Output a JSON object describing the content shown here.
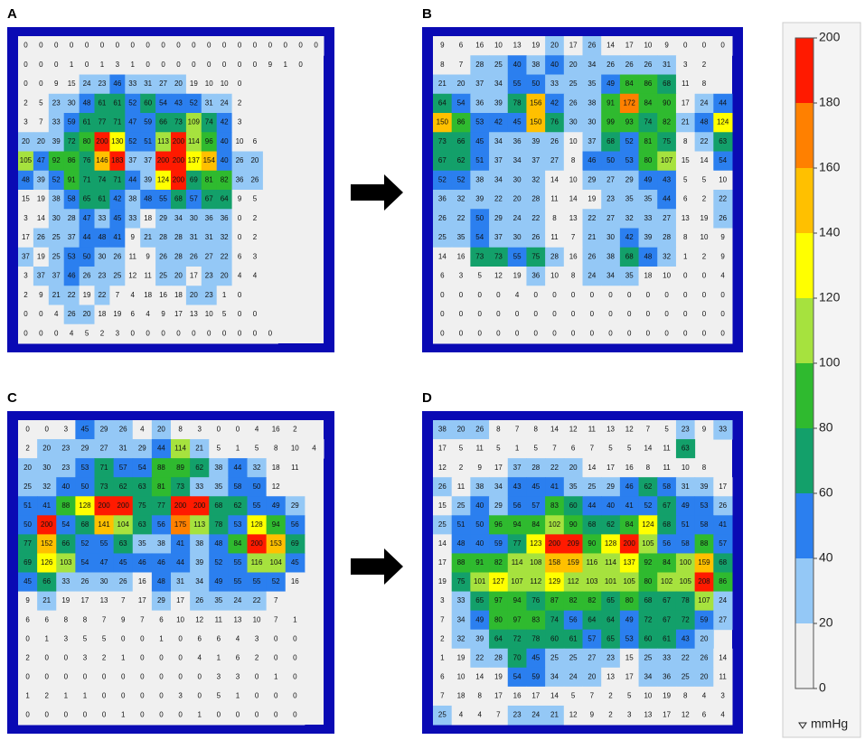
{
  "chart_data": [
    {
      "type": "heatmap",
      "title": "A",
      "values": [
        [
          0,
          0,
          0,
          0,
          0,
          0,
          0,
          0,
          0,
          0,
          0,
          0,
          0,
          0,
          0,
          0,
          0,
          0,
          0,
          0
        ],
        [
          0,
          0,
          0,
          1,
          0,
          1,
          3,
          1,
          0,
          0,
          0,
          0,
          0,
          0,
          0,
          0,
          9,
          1,
          0
        ],
        [
          0,
          0,
          9,
          15,
          24,
          23,
          46,
          33,
          31,
          27,
          20,
          19,
          10,
          10,
          0
        ],
        [
          2,
          5,
          23,
          30,
          48,
          61,
          61,
          52,
          60,
          54,
          43,
          52,
          31,
          24,
          2
        ],
        [
          3,
          7,
          33,
          59,
          61,
          77,
          71,
          47,
          59,
          66,
          73,
          109,
          74,
          42,
          3
        ],
        [
          20,
          20,
          39,
          72,
          80,
          200,
          130,
          52,
          51,
          113,
          200,
          114,
          96,
          40,
          10,
          6
        ],
        [
          105,
          47,
          92,
          86,
          76,
          146,
          183,
          37,
          37,
          200,
          200,
          137,
          154,
          40,
          26,
          20
        ],
        [
          48,
          39,
          52,
          91,
          71,
          74,
          71,
          44,
          39,
          124,
          200,
          69,
          81,
          82,
          36,
          26
        ],
        [
          15,
          19,
          38,
          58,
          65,
          61,
          42,
          38,
          48,
          55,
          68,
          57,
          67,
          64,
          9,
          5
        ],
        [
          3,
          14,
          30,
          28,
          47,
          33,
          45,
          33,
          18,
          29,
          34,
          30,
          36,
          36,
          0,
          2
        ],
        [
          17,
          26,
          25,
          37,
          44,
          48,
          41,
          9,
          21,
          28,
          28,
          31,
          31,
          32,
          0,
          2
        ],
        [
          37,
          19,
          25,
          53,
          50,
          30,
          26,
          11,
          9,
          26,
          28,
          26,
          27,
          22,
          6,
          3
        ],
        [
          3,
          37,
          37,
          46,
          26,
          23,
          25,
          12,
          11,
          25,
          20,
          17,
          23,
          20,
          4,
          4
        ],
        [
          2,
          9,
          21,
          22,
          19,
          22,
          7,
          4,
          18,
          16,
          18,
          20,
          23,
          1,
          0
        ],
        [
          0,
          0,
          4,
          26,
          20,
          18,
          19,
          6,
          4,
          9,
          17,
          13,
          10,
          5,
          0,
          0
        ],
        [
          0,
          0,
          0,
          4,
          5,
          2,
          3,
          0,
          0,
          0,
          0,
          0,
          0,
          0,
          0,
          0,
          0
        ]
      ]
    },
    {
      "type": "heatmap",
      "title": "B",
      "values": [
        [
          9,
          6,
          16,
          10,
          13,
          19,
          20,
          17,
          26,
          14,
          17,
          10,
          9,
          0,
          0,
          0
        ],
        [
          8,
          7,
          28,
          25,
          40,
          38,
          40,
          20,
          34,
          26,
          26,
          26,
          31,
          3,
          2
        ],
        [
          21,
          20,
          37,
          34,
          55,
          50,
          33,
          25,
          35,
          49,
          84,
          86,
          68,
          11,
          8
        ],
        [
          64,
          54,
          36,
          39,
          78,
          156,
          42,
          26,
          38,
          91,
          172,
          84,
          90,
          17,
          24,
          44
        ],
        [
          150,
          86,
          53,
          42,
          45,
          150,
          76,
          30,
          30,
          99,
          93,
          74,
          82,
          21,
          48,
          124
        ],
        [
          73,
          66,
          45,
          34,
          36,
          39,
          26,
          10,
          37,
          68,
          52,
          81,
          75,
          8,
          22,
          63
        ],
        [
          67,
          62,
          51,
          37,
          34,
          37,
          27,
          8,
          46,
          50,
          53,
          80,
          107,
          15,
          14,
          54
        ],
        [
          52,
          52,
          38,
          34,
          30,
          32,
          14,
          10,
          29,
          27,
          29,
          49,
          43,
          5,
          5,
          10
        ],
        [
          36,
          32,
          39,
          22,
          20,
          28,
          11,
          14,
          19,
          23,
          35,
          35,
          44,
          6,
          2,
          22
        ],
        [
          26,
          22,
          50,
          29,
          24,
          22,
          8,
          13,
          22,
          27,
          32,
          33,
          27,
          13,
          19,
          26
        ],
        [
          25,
          35,
          54,
          37,
          30,
          26,
          11,
          7,
          21,
          30,
          42,
          39,
          28,
          8,
          10,
          9
        ],
        [
          14,
          16,
          73,
          73,
          55,
          75,
          28,
          16,
          26,
          38,
          68,
          48,
          32,
          1,
          2,
          9
        ],
        [
          6,
          3,
          5,
          12,
          19,
          36,
          10,
          8,
          24,
          34,
          35,
          18,
          10,
          0,
          0,
          4
        ],
        [
          0,
          0,
          0,
          0,
          4,
          0,
          0,
          0,
          0,
          0,
          0,
          0,
          0,
          0,
          0,
          0
        ],
        [
          0,
          0,
          0,
          0,
          0,
          0,
          0,
          0,
          0,
          0,
          0,
          0,
          0,
          0,
          0,
          0
        ],
        [
          0,
          0,
          0,
          0,
          0,
          0,
          0,
          0,
          0,
          0,
          0,
          0,
          0,
          0,
          0,
          0
        ]
      ]
    },
    {
      "type": "heatmap",
      "title": "C",
      "values": [
        [
          0,
          0,
          3,
          45,
          29,
          26,
          4,
          20,
          8,
          3,
          0,
          0,
          4,
          16,
          2
        ],
        [
          2,
          20,
          23,
          29,
          27,
          31,
          29,
          44,
          114,
          21,
          5,
          1,
          5,
          8,
          10,
          4
        ],
        [
          20,
          30,
          23,
          53,
          71,
          57,
          54,
          88,
          89,
          62,
          38,
          44,
          32,
          18,
          11
        ],
        [
          25,
          32,
          40,
          50,
          73,
          62,
          63,
          81,
          73,
          33,
          35,
          58,
          50,
          12
        ],
        [
          51,
          41,
          88,
          128,
          200,
          200,
          75,
          77,
          200,
          200,
          68,
          62,
          55,
          49,
          29
        ],
        [
          50,
          200,
          54,
          68,
          141,
          104,
          63,
          56,
          175,
          113,
          78,
          53,
          128,
          94,
          56
        ],
        [
          77,
          152,
          66,
          52,
          55,
          63,
          35,
          38,
          41,
          38,
          48,
          84,
          200,
          153,
          69
        ],
        [
          69,
          126,
          103,
          54,
          47,
          45,
          46,
          46,
          44,
          39,
          52,
          55,
          116,
          104,
          45
        ],
        [
          45,
          66,
          33,
          26,
          30,
          26,
          16,
          48,
          31,
          34,
          49,
          55,
          55,
          52,
          16
        ],
        [
          9,
          21,
          19,
          17,
          13,
          7,
          17,
          29,
          17,
          26,
          35,
          24,
          22,
          7
        ],
        [
          6,
          6,
          8,
          8,
          7,
          9,
          7,
          6,
          10,
          12,
          11,
          13,
          10,
          7,
          1
        ],
        [
          0,
          1,
          3,
          5,
          5,
          0,
          0,
          1,
          0,
          6,
          6,
          4,
          3,
          0,
          0
        ],
        [
          2,
          0,
          0,
          3,
          2,
          1,
          0,
          0,
          0,
          4,
          1,
          6,
          2,
          0,
          0
        ],
        [
          0,
          0,
          0,
          0,
          0,
          0,
          0,
          0,
          0,
          0,
          3,
          3,
          0,
          1,
          0
        ],
        [
          1,
          2,
          1,
          1,
          0,
          0,
          0,
          0,
          3,
          0,
          5,
          1,
          0,
          0,
          0
        ],
        [
          0,
          0,
          0,
          0,
          0,
          1,
          0,
          0,
          0,
          1,
          0,
          0,
          0,
          0,
          0
        ]
      ]
    },
    {
      "type": "heatmap",
      "title": "D",
      "values": [
        [
          38,
          20,
          26,
          8,
          7,
          8,
          14,
          12,
          11,
          13,
          12,
          7,
          5,
          23,
          9,
          33
        ],
        [
          17,
          5,
          11,
          5,
          1,
          5,
          7,
          6,
          7,
          5,
          5,
          14,
          11,
          63
        ],
        [
          12,
          2,
          9,
          17,
          37,
          28,
          22,
          20,
          14,
          17,
          16,
          8,
          11,
          10,
          8
        ],
        [
          26,
          11,
          38,
          34,
          43,
          45,
          41,
          35,
          25,
          29,
          46,
          62,
          58,
          31,
          39,
          17
        ],
        [
          15,
          25,
          40,
          29,
          56,
          57,
          83,
          60,
          44,
          40,
          41,
          52,
          67,
          49,
          53,
          26
        ],
        [
          25,
          51,
          50,
          96,
          94,
          84,
          102,
          90,
          68,
          62,
          84,
          124,
          68,
          51,
          58,
          41
        ],
        [
          14,
          48,
          40,
          59,
          77,
          123,
          200,
          209,
          90,
          128,
          200,
          105,
          56,
          58,
          88,
          57
        ],
        [
          17,
          88,
          91,
          82,
          114,
          108,
          158,
          159,
          116,
          114,
          137,
          92,
          84,
          100,
          159,
          68
        ],
        [
          19,
          75,
          101,
          127,
          107,
          112,
          129,
          112,
          103,
          101,
          105,
          80,
          102,
          105,
          208,
          86
        ],
        [
          3,
          33,
          65,
          97,
          94,
          76,
          87,
          82,
          82,
          65,
          80,
          68,
          67,
          78,
          107,
          24
        ],
        [
          7,
          34,
          49,
          80,
          97,
          83,
          74,
          56,
          64,
          64,
          49,
          72,
          67,
          72,
          59,
          27
        ],
        [
          2,
          32,
          39,
          64,
          72,
          78,
          60,
          61,
          57,
          65,
          53,
          60,
          61,
          43,
          20
        ],
        [
          1,
          19,
          22,
          28,
          70,
          45,
          25,
          25,
          27,
          23,
          15,
          25,
          33,
          22,
          26,
          14
        ],
        [
          6,
          10,
          14,
          19,
          54,
          59,
          34,
          24,
          20,
          13,
          17,
          34,
          36,
          25,
          20,
          11
        ],
        [
          7,
          18,
          8,
          17,
          16,
          17,
          14,
          5,
          7,
          2,
          5,
          10,
          19,
          8,
          4,
          3
        ],
        [
          25,
          4,
          4,
          7,
          23,
          24,
          21,
          12,
          9,
          2,
          3,
          13,
          17,
          12,
          6,
          4
        ]
      ]
    }
  ],
  "colorbar": {
    "ylim": [
      0,
      200
    ],
    "yticks": [
      0,
      20,
      40,
      60,
      80,
      100,
      120,
      140,
      160,
      180,
      200
    ],
    "colors": [
      "#f0f0f0",
      "#94c8f6",
      "#2b7fef",
      "#13a06a",
      "#2fba2f",
      "#a6e23e",
      "#ffff00",
      "#ffc000",
      "#ff8000",
      "#ff1a00"
    ],
    "unit": "mmHg"
  }
}
